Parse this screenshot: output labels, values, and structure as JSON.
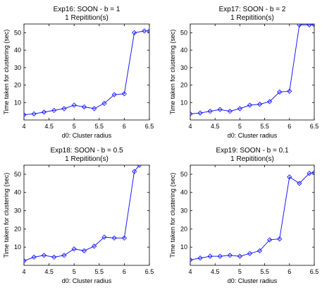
{
  "chart_data": [
    {
      "type": "line",
      "title": "Exp16: SOON - b = 1",
      "subtitle": "1 Repitition(s)",
      "xlabel": "d0: Cluster radius",
      "ylabel": "Time taken for clustering (sec)",
      "xlim": [
        4,
        6.5
      ],
      "ylim": [
        0,
        55
      ],
      "xticks": [
        "4",
        "4.5",
        "5",
        "5.5",
        "6",
        "6.5"
      ],
      "yticks": [
        "10",
        "20",
        "30",
        "40",
        "50"
      ],
      "series": [
        {
          "color": "#1a1aff",
          "marker": "diamond",
          "x": [
            4.0,
            4.2,
            4.4,
            4.6,
            4.8,
            5.0,
            5.2,
            5.4,
            5.6,
            5.8,
            6.0,
            6.2,
            6.4,
            6.5
          ],
          "y": [
            3.0,
            3.5,
            4.5,
            5.5,
            6.5,
            8.5,
            7.5,
            6.5,
            9.5,
            14.5,
            15.0,
            50.0,
            51.0,
            51.0
          ]
        }
      ]
    },
    {
      "type": "line",
      "title": "Exp17: SOON - b = 2",
      "subtitle": "1 Repitition(s)",
      "xlabel": "d0: Cluster radius",
      "ylabel": "Time taken for clustering (sec)",
      "xlim": [
        4,
        6.5
      ],
      "ylim": [
        0,
        55
      ],
      "xticks": [
        "4",
        "4.5",
        "5",
        "5.5",
        "6",
        "6.5"
      ],
      "yticks": [
        "10",
        "20",
        "30",
        "40",
        "50"
      ],
      "series": [
        {
          "color": "#1a1aff",
          "marker": "diamond",
          "x": [
            4.0,
            4.2,
            4.4,
            4.6,
            4.8,
            5.0,
            5.2,
            5.4,
            5.6,
            5.8,
            6.0,
            6.2,
            6.4,
            6.5
          ],
          "y": [
            3.5,
            4.0,
            5.0,
            6.0,
            5.0,
            6.5,
            8.5,
            9.0,
            10.5,
            16.0,
            16.5,
            54.5,
            54.5,
            54.5
          ]
        }
      ]
    },
    {
      "type": "line",
      "title": "Exp18: SOON - b = 0.5",
      "subtitle": "1 Repitition(s)",
      "xlabel": "d0: Cluster radius",
      "ylabel": "Time taken for clustering (sec)",
      "xlim": [
        4,
        6.5
      ],
      "ylim": [
        0,
        55
      ],
      "xticks": [
        "4",
        "4.5",
        "5",
        "5.5",
        "6",
        "6.5"
      ],
      "yticks": [
        "10",
        "20",
        "30",
        "40",
        "50"
      ],
      "series": [
        {
          "color": "#1a1aff",
          "marker": "diamond",
          "x": [
            4.0,
            4.2,
            4.4,
            4.6,
            4.8,
            5.0,
            5.2,
            5.4,
            5.6,
            5.8,
            6.0,
            6.2,
            6.3
          ],
          "y": [
            2.5,
            4.5,
            5.5,
            4.5,
            5.5,
            9.0,
            8.0,
            10.5,
            15.5,
            15.0,
            15.0,
            51.5,
            55.0
          ]
        }
      ]
    },
    {
      "type": "line",
      "title": "Exp19: SOON - b = 0.1",
      "subtitle": "1 Repitition(s)",
      "xlabel": "d0: Cluster radius",
      "ylabel": "Time taken for clustering (sec)",
      "xlim": [
        4,
        6.5
      ],
      "ylim": [
        0,
        55
      ],
      "xticks": [
        "4",
        "4.5",
        "5",
        "5.5",
        "6",
        "6.5"
      ],
      "yticks": [
        "10",
        "20",
        "30",
        "40",
        "50"
      ],
      "series": [
        {
          "color": "#1a1aff",
          "marker": "diamond",
          "x": [
            4.0,
            4.2,
            4.4,
            4.6,
            4.8,
            5.0,
            5.2,
            5.4,
            5.6,
            5.8,
            6.0,
            6.2,
            6.4,
            6.5
          ],
          "y": [
            3.0,
            4.0,
            5.0,
            5.0,
            5.5,
            5.0,
            6.5,
            8.0,
            14.0,
            14.5,
            48.5,
            45.0,
            50.5,
            51.0
          ]
        }
      ]
    }
  ]
}
